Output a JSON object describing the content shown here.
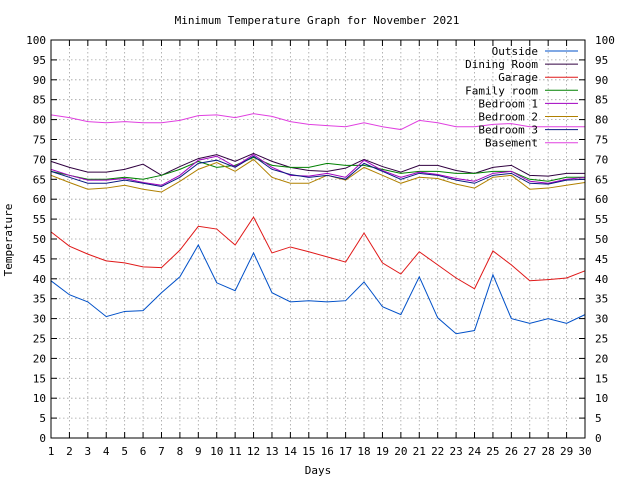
{
  "chart_data": {
    "type": "line",
    "title": "Minimum Temperature Graph for November 2021",
    "xlabel": "Days",
    "ylabel": "Temperature",
    "xlim": [
      1,
      30
    ],
    "ylim": [
      0,
      100
    ],
    "x_ticks": [
      1,
      2,
      3,
      4,
      5,
      6,
      7,
      8,
      9,
      10,
      11,
      12,
      13,
      14,
      15,
      16,
      17,
      18,
      19,
      20,
      21,
      22,
      23,
      24,
      25,
      26,
      27,
      28,
      29,
      30
    ],
    "y_ticks": [
      0,
      5,
      10,
      15,
      20,
      25,
      30,
      35,
      40,
      45,
      50,
      55,
      60,
      65,
      70,
      75,
      80,
      85,
      90,
      95,
      100
    ],
    "grid": true,
    "legend_position": "top-right",
    "x": [
      1,
      2,
      3,
      4,
      5,
      6,
      7,
      8,
      9,
      10,
      11,
      12,
      13,
      14,
      15,
      16,
      17,
      18,
      19,
      20,
      21,
      22,
      23,
      24,
      25,
      26,
      27,
      28,
      29,
      30
    ],
    "series": [
      {
        "name": "Outside",
        "color": "#0050c8",
        "values": [
          39.5,
          36,
          34.2,
          30.5,
          31.8,
          32,
          36.5,
          40.5,
          48.5,
          39,
          37,
          46.5,
          36.5,
          34.2,
          34.5,
          34.2,
          34.5,
          39.2,
          33,
          31,
          40.5,
          30.2,
          26.2,
          27,
          41,
          30,
          28.8,
          30,
          28.8,
          31
        ]
      },
      {
        "name": "Dining Room",
        "color": "#300040",
        "values": [
          69.5,
          68,
          66.8,
          66.8,
          67.5,
          68.8,
          66,
          68.2,
          70.2,
          71.2,
          69.5,
          71.5,
          69.5,
          68,
          67.2,
          67,
          67.8,
          70,
          68.2,
          66.8,
          68.5,
          68.5,
          67.2,
          66.5,
          68,
          68.5,
          66,
          65.8,
          66.5,
          66.5
        ]
      },
      {
        "name": "Garage",
        "color": "#e01818",
        "values": [
          51.8,
          48.2,
          46.2,
          44.5,
          44,
          43,
          42.8,
          47.2,
          53.2,
          52.5,
          48.5,
          55.5,
          46.5,
          48,
          46.8,
          45.5,
          44.2,
          51.5,
          44,
          41.2,
          46.8,
          43.5,
          40.2,
          37.5,
          47,
          43.5,
          39.5,
          39.8,
          40.2,
          42
        ]
      },
      {
        "name": "Family room",
        "color": "#008000",
        "values": [
          67,
          66,
          65,
          65,
          65.5,
          65,
          66,
          67.5,
          69.5,
          68,
          68.5,
          70.5,
          68.5,
          68,
          68,
          69,
          68.5,
          68.5,
          67.5,
          66.5,
          67,
          67,
          66.5,
          66.5,
          67,
          67,
          65,
          64.5,
          65.5,
          65.5
        ]
      },
      {
        "name": "Bedroom 1",
        "color": "#a000c0",
        "values": [
          67.5,
          66,
          64.8,
          64.8,
          65.2,
          64.2,
          63.5,
          66,
          69.8,
          70.8,
          68.2,
          71.2,
          68,
          66,
          65.8,
          66.5,
          65.5,
          69.8,
          67.2,
          65.5,
          66.8,
          66.2,
          65.2,
          64.5,
          66.5,
          67,
          64.5,
          64,
          65,
          65.5
        ]
      },
      {
        "name": "Bedroom 2",
        "color": "#b08000",
        "values": [
          66,
          64.2,
          62.5,
          62.8,
          63.5,
          62.5,
          61.8,
          64.5,
          67.5,
          69.2,
          67,
          70,
          65.5,
          64,
          64,
          66,
          64.8,
          68,
          66,
          64,
          65.5,
          65.2,
          63.8,
          62.8,
          65.5,
          66,
          62.5,
          62.8,
          63.5,
          64.2
        ]
      },
      {
        "name": "Bedroom 3",
        "color": "#0a1a80",
        "values": [
          67,
          65.5,
          64,
          64,
          64.8,
          64,
          63.2,
          65.5,
          69,
          69.8,
          68,
          70.8,
          67.5,
          66.2,
          65.5,
          66,
          65,
          69,
          67,
          65,
          66.5,
          66,
          64.8,
          64,
          66,
          66.5,
          64,
          63.8,
          64.8,
          65
        ]
      },
      {
        "name": "Basement",
        "color": "#e040e0",
        "values": [
          81.2,
          80.5,
          79.5,
          79.2,
          79.5,
          79.2,
          79.2,
          79.8,
          81,
          81.2,
          80.5,
          81.5,
          80.8,
          79.5,
          78.8,
          78.5,
          78.2,
          79.2,
          78.2,
          77.5,
          79.8,
          79.2,
          78.2,
          78.2,
          78.8,
          79,
          78.2,
          78.2,
          78.2,
          78.2
        ]
      }
    ]
  }
}
